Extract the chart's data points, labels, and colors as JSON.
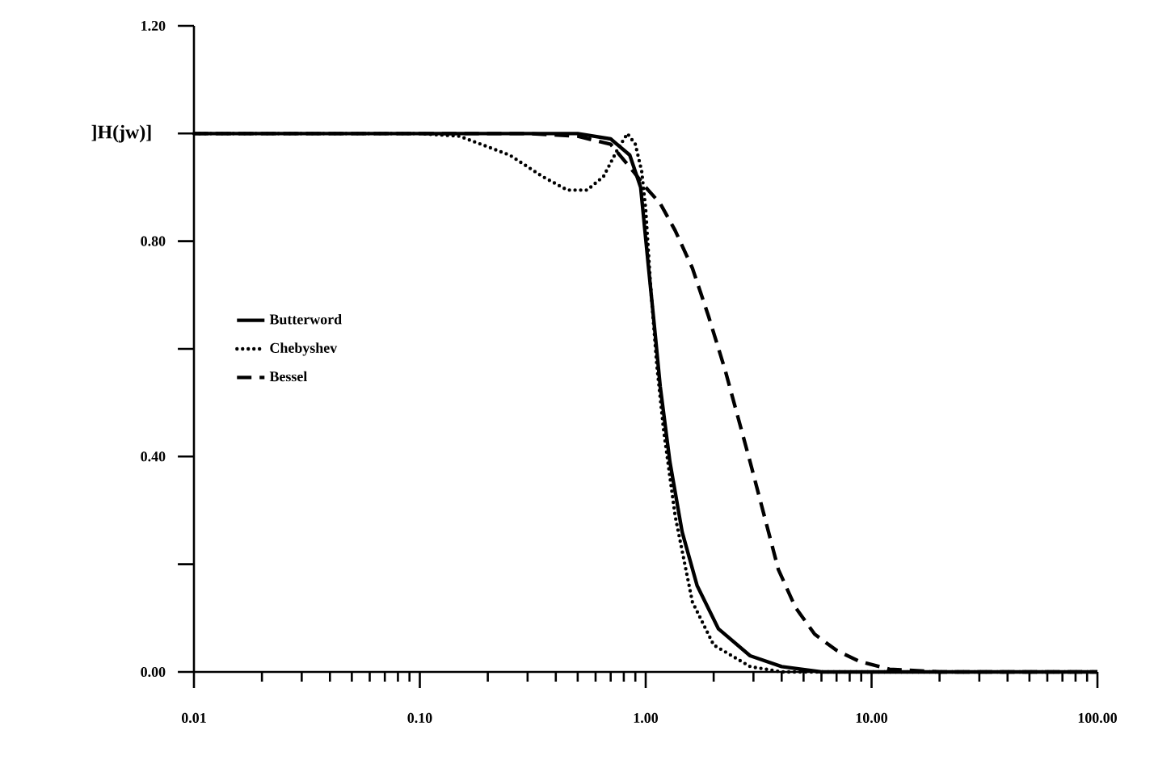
{
  "chart_data": {
    "type": "line",
    "ylabel": "]H(jw)]",
    "log": "x",
    "xlim": [
      0.01,
      100
    ],
    "ylim": [
      0,
      1.2
    ],
    "xticks": [
      {
        "value": 0.01,
        "label": "0.01"
      },
      {
        "value": 0.1,
        "label": "0.10"
      },
      {
        "value": 1,
        "label": "1.00"
      },
      {
        "value": 10,
        "label": "10.00"
      },
      {
        "value": 100,
        "label": "100.00"
      }
    ],
    "yticks": [
      {
        "value": 0,
        "label": "0.00"
      },
      {
        "value": 0.2,
        "label": null
      },
      {
        "value": 0.4,
        "label": "0.40"
      },
      {
        "value": 0.6,
        "label": null
      },
      {
        "value": 0.8,
        "label": "0.80"
      },
      {
        "value": 1.0,
        "label": null
      },
      {
        "value": 1.2,
        "label": "1.20"
      }
    ],
    "legend": "left",
    "grid": false,
    "series": [
      {
        "name": "Butterword",
        "color": "#000000",
        "line_style": "solid",
        "x": [
          0.01,
          0.1,
          0.3,
          0.5,
          0.7,
          0.85,
          0.95,
          1.03,
          1.1,
          1.16,
          1.28,
          1.45,
          1.69,
          2.1,
          2.9,
          4,
          6,
          10,
          30,
          100
        ],
        "values": [
          1.0,
          1.0,
          1.0,
          1.0,
          0.99,
          0.96,
          0.9,
          0.75,
          0.63,
          0.53,
          0.39,
          0.26,
          0.16,
          0.08,
          0.03,
          0.01,
          0.0,
          0.0,
          0.0,
          0.0
        ]
      },
      {
        "name": "Chebyshev",
        "color": "#000000",
        "line_style": "dotted",
        "x": [
          0.01,
          0.1,
          0.15,
          0.25,
          0.35,
          0.45,
          0.55,
          0.65,
          0.75,
          0.83,
          0.9,
          0.96,
          1.0,
          1.05,
          1.12,
          1.2,
          1.35,
          1.61,
          2.0,
          2.9,
          4,
          10,
          100
        ],
        "values": [
          1.0,
          1.0,
          0.995,
          0.96,
          0.92,
          0.895,
          0.895,
          0.92,
          0.97,
          1.0,
          0.98,
          0.93,
          0.86,
          0.72,
          0.57,
          0.45,
          0.29,
          0.13,
          0.05,
          0.01,
          0.0,
          0.0,
          0.0
        ]
      },
      {
        "name": "Bessel",
        "color": "#000000",
        "line_style": "dashed",
        "x": [
          0.01,
          0.1,
          0.3,
          0.5,
          0.7,
          0.88,
          1.0,
          1.16,
          1.35,
          1.61,
          1.9,
          2.25,
          2.9,
          3.87,
          4.6,
          5.6,
          7,
          8.8,
          12,
          20,
          100
        ],
        "values": [
          1.0,
          1.0,
          1.0,
          0.995,
          0.98,
          0.93,
          0.9,
          0.87,
          0.82,
          0.75,
          0.66,
          0.56,
          0.39,
          0.19,
          0.12,
          0.07,
          0.04,
          0.02,
          0.005,
          0.0,
          0.0
        ]
      }
    ]
  }
}
